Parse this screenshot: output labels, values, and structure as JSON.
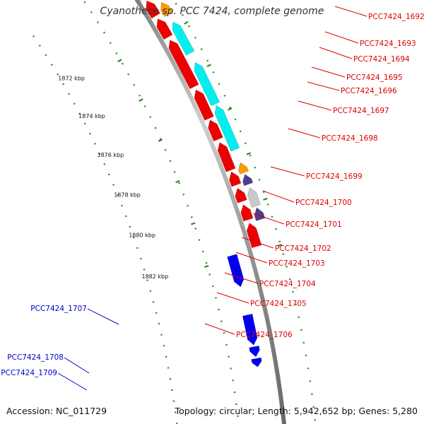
{
  "title": "Cyanothece sp. PCC 7424, complete genome",
  "footer": {
    "accession": "Accession: NC_011729",
    "summary": "Topology: circular; Length: 5,942,652 bp; Genes: 5,280"
  },
  "colors": {
    "backbone": "#8f8f8f",
    "tick": "#2e8b22",
    "forward_label": "#0000cc",
    "reverse_label": "#dd0000",
    "red_gene": "#ee0000",
    "cyan_gene": "#00f0f0",
    "purple_gene": "#4a3f8f",
    "orange_gene": "#ff9900",
    "gray_gene": "#c8c8c8",
    "pink_gene": "#ff2ea6",
    "blue_gene": "#0000ee"
  },
  "kbp_marks": [
    "1872 kbp",
    "1874 kbp",
    "1876 kbp",
    "1878 kbp",
    "1880 kbp",
    "1882 kbp"
  ],
  "reverse_genes": [
    "PCC7424_1692",
    "PCC7424_1693",
    "PCC7424_1694",
    "PCC7424_1695",
    "PCC7424_1696",
    "PCC7424_1697",
    "PCC7424_1698",
    "PCC7424_1699",
    "PCC7424_1700",
    "PCC7424_1701",
    "PCC7424_1702",
    "PCC7424_1703",
    "PCC7424_1704",
    "PCC7424_1705",
    "PCC7424_1706"
  ],
  "forward_genes": [
    "PCC7424_1707",
    "PCC7424_1708",
    "PCC7424_1709"
  ]
}
